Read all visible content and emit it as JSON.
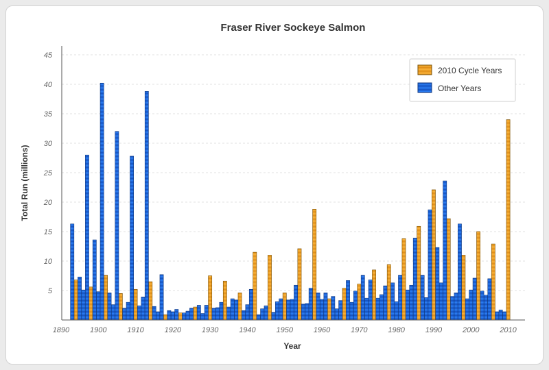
{
  "chart_data": {
    "type": "bar",
    "title": "Fraser River Sockeye Salmon",
    "xlabel": "Year",
    "ylabel": "Total Run (millions)",
    "ylim": [
      0,
      45
    ],
    "xlim": [
      1889,
      2014
    ],
    "yticks": [
      5,
      10,
      15,
      20,
      25,
      30,
      35,
      40,
      45
    ],
    "xticks": [
      1890,
      1900,
      1910,
      1920,
      1930,
      1940,
      1950,
      1960,
      1970,
      1980,
      1990,
      2000,
      2010
    ],
    "grid": true,
    "legend_position": "top-right",
    "series": [
      {
        "name": "2010 Cycle Years",
        "color": "#f5a623",
        "points": [
          [
            1894,
            6.8
          ],
          [
            1898,
            5.6
          ],
          [
            1902,
            7.6
          ],
          [
            1906,
            4.5
          ],
          [
            1910,
            5.2
          ],
          [
            1914,
            6.5
          ],
          [
            1918,
            0.9
          ],
          [
            1922,
            1.2
          ],
          [
            1926,
            2.2
          ],
          [
            1930,
            7.5
          ],
          [
            1934,
            6.6
          ],
          [
            1938,
            4.6
          ],
          [
            1942,
            11.5
          ],
          [
            1946,
            11.0
          ],
          [
            1950,
            4.6
          ],
          [
            1954,
            12.1
          ],
          [
            1958,
            18.8
          ],
          [
            1962,
            3.6
          ],
          [
            1966,
            5.4
          ],
          [
            1970,
            6.1
          ],
          [
            1974,
            8.5
          ],
          [
            1978,
            9.4
          ],
          [
            1982,
            13.8
          ],
          [
            1986,
            15.9
          ],
          [
            1990,
            22.1
          ],
          [
            1994,
            17.2
          ],
          [
            1998,
            11.0
          ],
          [
            2002,
            15.0
          ],
          [
            2006,
            12.9
          ],
          [
            2010,
            34.0
          ]
        ]
      },
      {
        "name": "Other Years",
        "color": "#1e6fe8",
        "points": [
          [
            1893,
            16.3
          ],
          [
            1895,
            7.3
          ],
          [
            1896,
            5.1
          ],
          [
            1897,
            28.0
          ],
          [
            1899,
            13.6
          ],
          [
            1900,
            4.8
          ],
          [
            1901,
            40.2
          ],
          [
            1903,
            4.6
          ],
          [
            1904,
            2.6
          ],
          [
            1905,
            32.0
          ],
          [
            1907,
            2.0
          ],
          [
            1908,
            3.0
          ],
          [
            1909,
            27.8
          ],
          [
            1911,
            2.4
          ],
          [
            1912,
            3.9
          ],
          [
            1913,
            38.8
          ],
          [
            1915,
            2.3
          ],
          [
            1916,
            1.4
          ],
          [
            1917,
            7.7
          ],
          [
            1919,
            1.6
          ],
          [
            1920,
            1.4
          ],
          [
            1921,
            1.8
          ],
          [
            1923,
            1.2
          ],
          [
            1924,
            1.5
          ],
          [
            1925,
            2.0
          ],
          [
            1927,
            2.5
          ],
          [
            1928,
            1.1
          ],
          [
            1929,
            2.5
          ],
          [
            1931,
            2.0
          ],
          [
            1932,
            2.1
          ],
          [
            1933,
            3.0
          ],
          [
            1935,
            2.2
          ],
          [
            1936,
            3.6
          ],
          [
            1937,
            3.4
          ],
          [
            1939,
            1.6
          ],
          [
            1940,
            2.6
          ],
          [
            1941,
            5.2
          ],
          [
            1943,
            0.9
          ],
          [
            1944,
            1.9
          ],
          [
            1945,
            2.4
          ],
          [
            1947,
            1.3
          ],
          [
            1948,
            3.1
          ],
          [
            1949,
            3.6
          ],
          [
            1951,
            3.4
          ],
          [
            1952,
            3.5
          ],
          [
            1953,
            5.9
          ],
          [
            1955,
            2.7
          ],
          [
            1956,
            2.8
          ],
          [
            1957,
            5.4
          ],
          [
            1959,
            4.6
          ],
          [
            1960,
            3.5
          ],
          [
            1961,
            4.6
          ],
          [
            1963,
            4.0
          ],
          [
            1964,
            1.9
          ],
          [
            1965,
            3.3
          ],
          [
            1967,
            6.7
          ],
          [
            1968,
            3.0
          ],
          [
            1969,
            4.9
          ],
          [
            1971,
            7.6
          ],
          [
            1972,
            3.7
          ],
          [
            1973,
            6.8
          ],
          [
            1975,
            3.7
          ],
          [
            1976,
            4.3
          ],
          [
            1977,
            5.8
          ],
          [
            1979,
            6.3
          ],
          [
            1980,
            3.1
          ],
          [
            1981,
            7.6
          ],
          [
            1983,
            5.1
          ],
          [
            1984,
            5.9
          ],
          [
            1985,
            13.9
          ],
          [
            1987,
            7.6
          ],
          [
            1988,
            3.8
          ],
          [
            1989,
            18.7
          ],
          [
            1991,
            12.3
          ],
          [
            1992,
            6.3
          ],
          [
            1993,
            23.6
          ],
          [
            1995,
            4.0
          ],
          [
            1996,
            4.6
          ],
          [
            1997,
            16.3
          ],
          [
            1999,
            3.6
          ],
          [
            2000,
            5.1
          ],
          [
            2001,
            7.1
          ],
          [
            2003,
            4.9
          ],
          [
            2004,
            4.2
          ],
          [
            2005,
            7.0
          ],
          [
            2007,
            1.4
          ],
          [
            2008,
            1.7
          ],
          [
            2009,
            1.4
          ]
        ]
      }
    ]
  }
}
